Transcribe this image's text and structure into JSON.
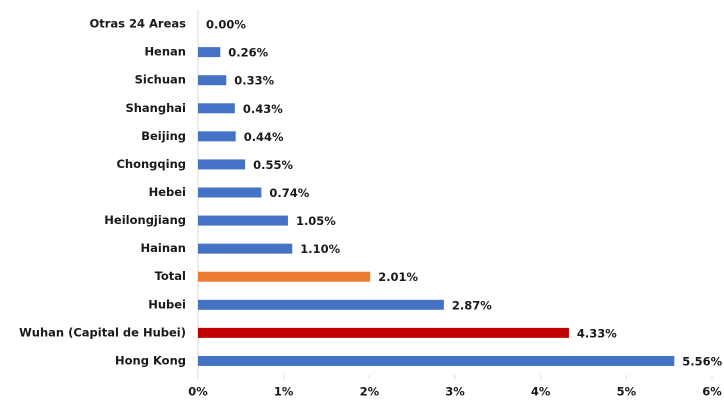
{
  "chart_data": {
    "type": "hbar",
    "categories": [
      "Otras 24 Areas",
      "Henan",
      "Sichuan",
      "Shanghai",
      "Beijing",
      "Chongqing",
      "Hebei",
      "Heilongjiang",
      "Hainan",
      "Total",
      "Hubei",
      "Wuhan (Capital de Hubei)",
      "Hong Kong"
    ],
    "values": [
      0,
      0.26,
      0.33,
      0.43,
      0.44,
      0.55,
      0.74,
      1.05,
      1.1,
      2.01,
      2.87,
      4.33,
      5.56
    ],
    "value_labels": [
      "0.00%",
      "0.26%",
      "0.33%",
      "0.43%",
      "0.44%",
      "0.55%",
      "0.74%",
      "1.05%",
      "1.10%",
      "2.01%",
      "2.87%",
      "4.33%",
      "5.56%"
    ],
    "colors": [
      "#4472c4",
      "#4472c4",
      "#4472c4",
      "#4472c4",
      "#4472c4",
      "#4472c4",
      "#4472c4",
      "#4472c4",
      "#4472c4",
      "#ed7d31",
      "#4472c4",
      "#c00000",
      "#4472c4"
    ],
    "xlim": [
      0,
      6
    ],
    "xticks": [
      {
        "value": 0,
        "label": "0%"
      },
      {
        "value": 1,
        "label": "1%"
      },
      {
        "value": 2,
        "label": "2%"
      },
      {
        "value": 3,
        "label": "3%"
      },
      {
        "value": 4,
        "label": "4%"
      },
      {
        "value": 5,
        "label": "5%"
      },
      {
        "value": 6,
        "label": "6%"
      }
    ],
    "grid": false
  }
}
